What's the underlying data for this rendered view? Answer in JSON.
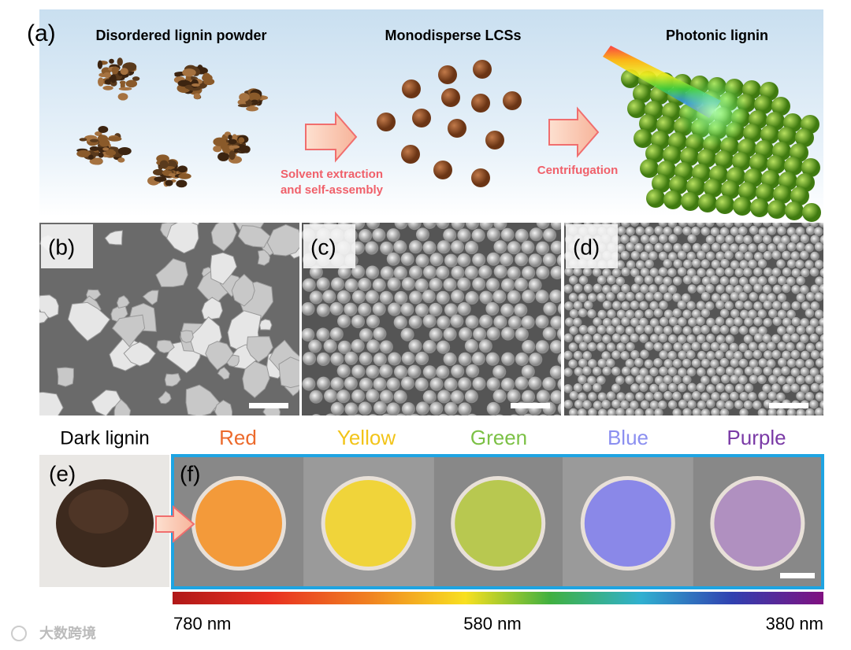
{
  "panel_a": {
    "label": "(a)",
    "disordered": "Disordered lignin powder",
    "monodisperse": "Monodisperse LCSs",
    "photonic": "Photonic lignin",
    "step_1": [
      "Solvent extraction",
      "and self-assembly"
    ],
    "step_2": "Centrifugation"
  },
  "sem_panels": [
    {
      "label": "(b)"
    },
    {
      "label": "(c)"
    },
    {
      "label": "(d)"
    }
  ],
  "panel_e": {
    "label": "(e)",
    "title": "Dark lignin"
  },
  "panel_f": {
    "label": "(f)",
    "colors": [
      "Red",
      "Yellow",
      "Green",
      "Blue",
      "Purple"
    ]
  },
  "spectrum": {
    "labels": [
      "780 nm",
      "580 nm",
      "380 nm"
    ]
  },
  "watermark": "大数跨境"
}
